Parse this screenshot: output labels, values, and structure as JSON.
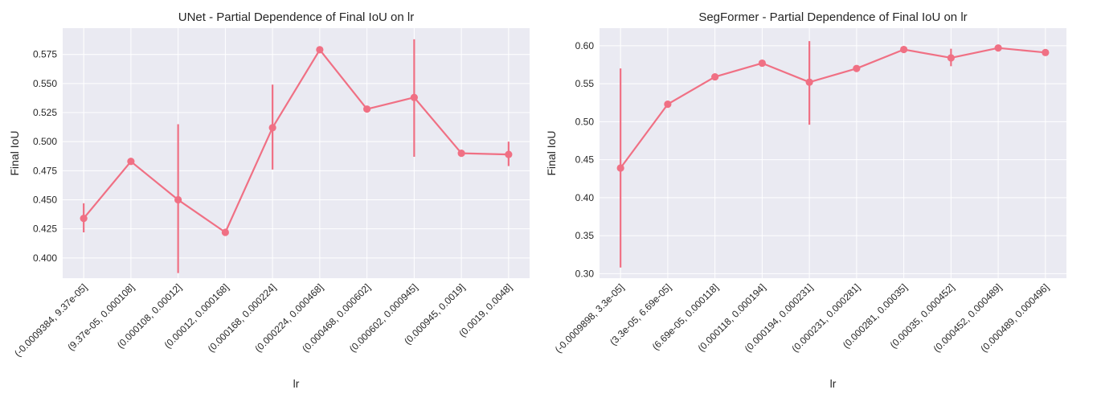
{
  "chart_data": [
    {
      "type": "line",
      "title": "UNet - Partial Dependence of Final IoU on lr",
      "xlabel": "lr",
      "ylabel": "Final IoU",
      "categories": [
        "(-0.0009384, 9.37e-05]",
        "(9.37e-05, 0.000108]",
        "(0.000108, 0.00012]",
        "(0.00012, 0.000168]",
        "(0.000168, 0.000224]",
        "(0.000224, 0.000468]",
        "(0.000468, 0.000602]",
        "(0.000602, 0.000945]",
        "(0.000945, 0.0019]",
        "(0.0019, 0.0048]"
      ],
      "values": [
        0.434,
        0.483,
        0.45,
        0.422,
        0.512,
        0.579,
        0.528,
        0.538,
        0.49,
        0.489
      ],
      "error_low": [
        0.422,
        0.483,
        0.387,
        0.422,
        0.476,
        0.579,
        0.528,
        0.487,
        0.49,
        0.479
      ],
      "error_high": [
        0.447,
        0.483,
        0.515,
        0.422,
        0.549,
        0.579,
        0.528,
        0.588,
        0.49,
        0.5
      ],
      "yticks": [
        0.4,
        0.425,
        0.45,
        0.475,
        0.5,
        0.525,
        0.55,
        0.575
      ],
      "ytick_labels": [
        "0.400",
        "0.425",
        "0.450",
        "0.475",
        "0.500",
        "0.525",
        "0.550",
        "0.575"
      ],
      "ylim": [
        0.3826,
        0.5976
      ],
      "grid": true,
      "color": "#f07084"
    },
    {
      "type": "line",
      "title": "SegFormer - Partial Dependence of Final IoU on lr",
      "xlabel": "lr",
      "ylabel": "Final IoU",
      "categories": [
        "(-0.0009898, 3.3e-05]",
        "(3.3e-05, 6.69e-05]",
        "(6.69e-05, 0.000118]",
        "(0.000118, 0.000194]",
        "(0.000194, 0.000231]",
        "(0.000231, 0.000281]",
        "(0.000281, 0.00035]",
        "(0.00035, 0.000452]",
        "(0.000452, 0.000489]",
        "(0.000489, 0.000496]"
      ],
      "values": [
        0.439,
        0.523,
        0.559,
        0.577,
        0.552,
        0.57,
        0.595,
        0.584,
        0.597,
        0.591
      ],
      "error_low": [
        0.308,
        0.523,
        0.559,
        0.577,
        0.496,
        0.57,
        0.595,
        0.573,
        0.597,
        0.591
      ],
      "error_high": [
        0.57,
        0.523,
        0.559,
        0.577,
        0.606,
        0.57,
        0.595,
        0.596,
        0.597,
        0.591
      ],
      "yticks": [
        0.3,
        0.35,
        0.4,
        0.45,
        0.5,
        0.55,
        0.6
      ],
      "ytick_labels": [
        "0.30",
        "0.35",
        "0.40",
        "0.45",
        "0.50",
        "0.55",
        "0.60"
      ],
      "ylim": [
        0.294,
        0.6231
      ],
      "grid": true,
      "color": "#f07084"
    }
  ]
}
